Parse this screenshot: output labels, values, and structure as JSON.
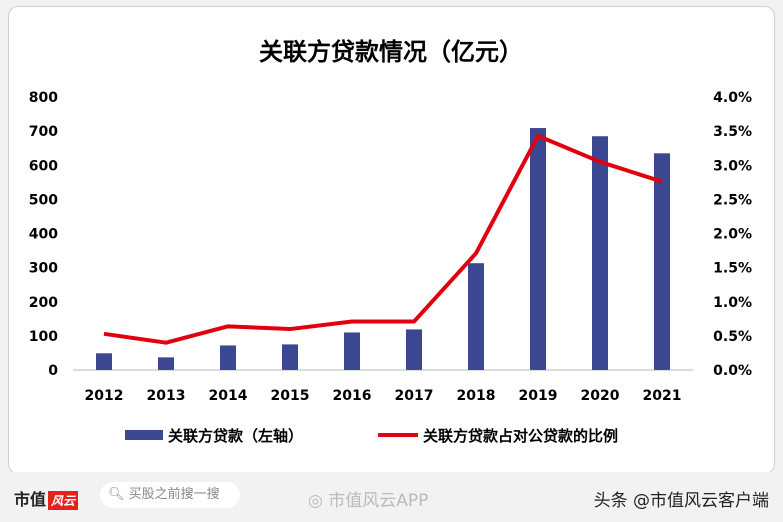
{
  "chart_data": {
    "type": "bar+line",
    "title": "关联方贷款情况（亿元）",
    "categories": [
      "2012",
      "2013",
      "2014",
      "2015",
      "2016",
      "2017",
      "2018",
      "2019",
      "2020",
      "2021"
    ],
    "series": [
      {
        "name": "关联方贷款（左轴）",
        "type": "bar",
        "axis": "left",
        "color": "#3b4891",
        "values": [
          49,
          37,
          72,
          75,
          110,
          119,
          313,
          709,
          685,
          635
        ]
      },
      {
        "name": "关联方贷款占对公贷款的比例",
        "type": "line",
        "axis": "right",
        "unit": "%",
        "color": "#e0000e",
        "values": [
          0.53,
          0.4,
          0.64,
          0.6,
          0.71,
          0.71,
          1.71,
          3.43,
          3.05,
          2.76
        ]
      }
    ],
    "y_left": {
      "range": [
        0,
        800
      ],
      "ticks": [
        "0",
        "100",
        "200",
        "300",
        "400",
        "500",
        "600",
        "700",
        "800"
      ]
    },
    "y_right": {
      "range": [
        0,
        4
      ],
      "ticks": [
        "0.0%",
        "0.5%",
        "1.0%",
        "1.5%",
        "2.0%",
        "2.5%",
        "3.0%",
        "3.5%",
        "4.0%"
      ]
    },
    "grid": false,
    "legend": "bottom"
  },
  "footer": {
    "logo": "市值",
    "logo_badge": "风云",
    "search_placeholder": "买股之前搜一搜",
    "weibo": "市值风云APP",
    "toutiao": "头条 @市值风云客户端"
  }
}
